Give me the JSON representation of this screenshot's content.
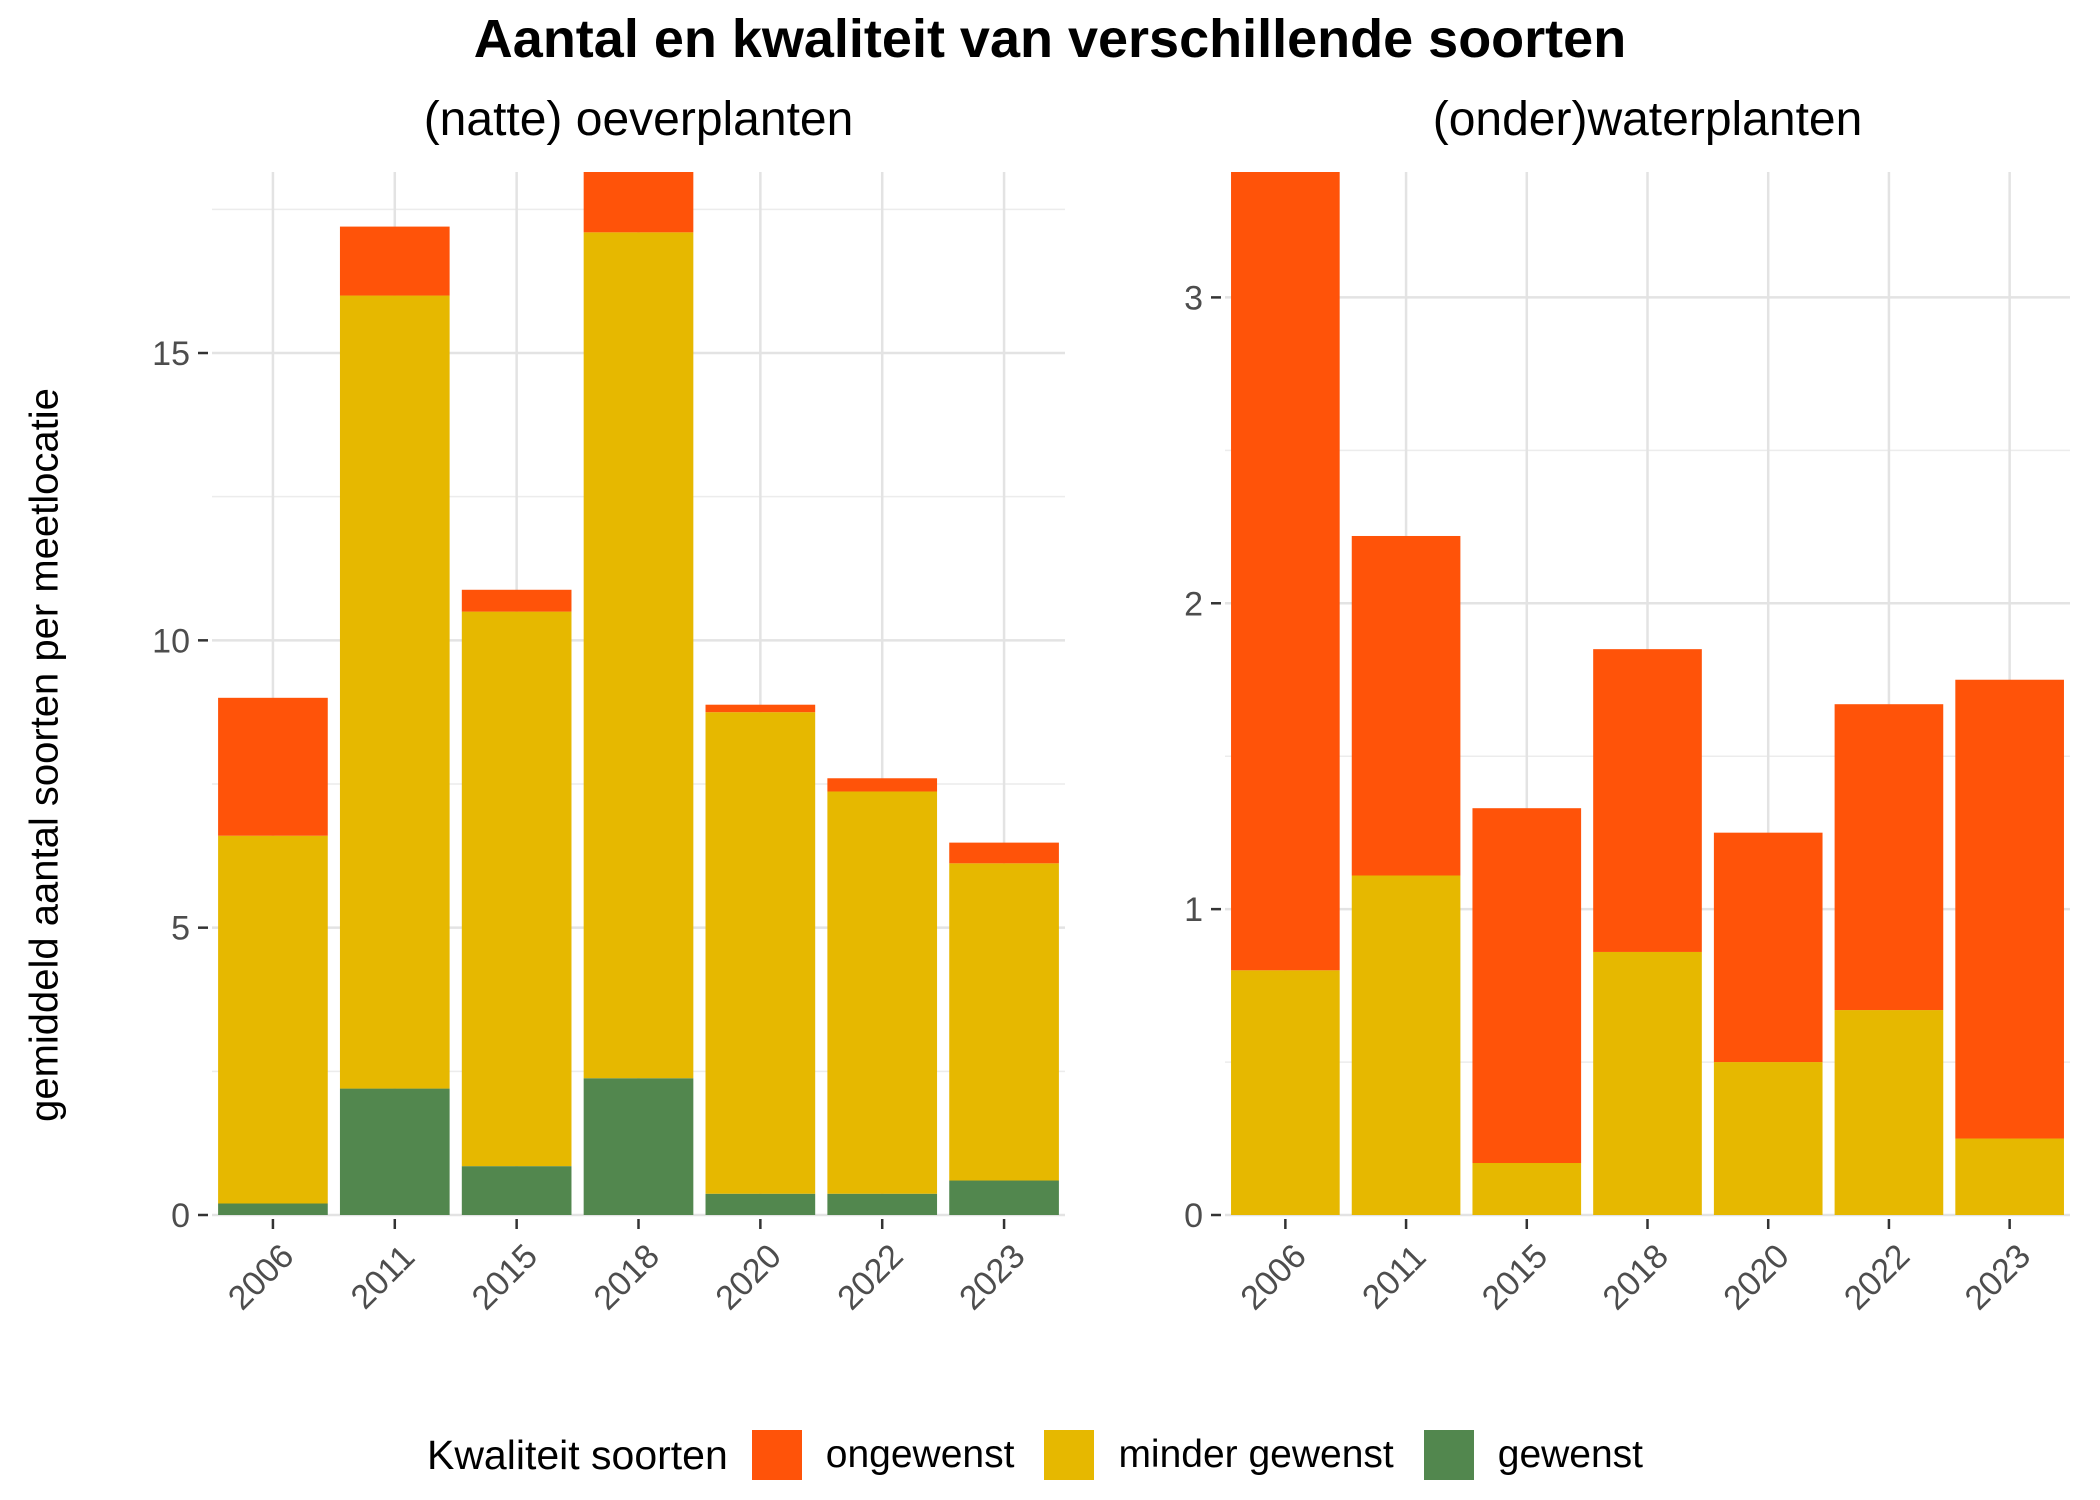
{
  "title": "Aantal en kwaliteit van verschillende soorten",
  "ylabel": "gemiddeld aantal soorten per meetlocatie",
  "legend": {
    "title": "Kwaliteit soorten",
    "items": [
      {
        "label": "ongewenst",
        "color": "#FF5309"
      },
      {
        "label": "minder gewenst",
        "color": "#E6B800"
      },
      {
        "label": "gewenst",
        "color": "#52874E"
      }
    ]
  },
  "chart_data": [
    {
      "type": "bar",
      "stacked": true,
      "title": "(natte) oeverplanten",
      "categories": [
        "2006",
        "2011",
        "2015",
        "2018",
        "2020",
        "2022",
        "2023"
      ],
      "ylim": [
        0,
        18.15
      ],
      "yticks": [
        0,
        5,
        10,
        15
      ],
      "grid": true,
      "series": [
        {
          "name": "gewenst",
          "values": [
            0.2,
            2.2,
            0.85,
            2.38,
            0.37,
            0.37,
            0.6
          ]
        },
        {
          "name": "minder gewenst",
          "values": [
            6.4,
            13.8,
            9.65,
            14.72,
            8.38,
            7.0,
            5.52
          ]
        },
        {
          "name": "ongewenst",
          "values": [
            2.4,
            1.2,
            0.38,
            1.05,
            0.13,
            0.23,
            0.36
          ]
        }
      ]
    },
    {
      "type": "bar",
      "stacked": true,
      "title": "(onder)waterplanten",
      "categories": [
        "2006",
        "2011",
        "2015",
        "2018",
        "2020",
        "2022",
        "2023"
      ],
      "ylim": [
        0,
        3.41
      ],
      "yticks": [
        0,
        1,
        2,
        3
      ],
      "grid": true,
      "series": [
        {
          "name": "gewenst",
          "values": [
            0,
            0,
            0,
            0,
            0,
            0,
            0
          ]
        },
        {
          "name": "minder gewenst",
          "values": [
            0.8,
            1.11,
            0.17,
            0.86,
            0.5,
            0.67,
            0.25
          ]
        },
        {
          "name": "ongewenst",
          "values": [
            2.61,
            1.11,
            1.16,
            0.99,
            0.75,
            1.0,
            1.5
          ]
        }
      ]
    }
  ]
}
